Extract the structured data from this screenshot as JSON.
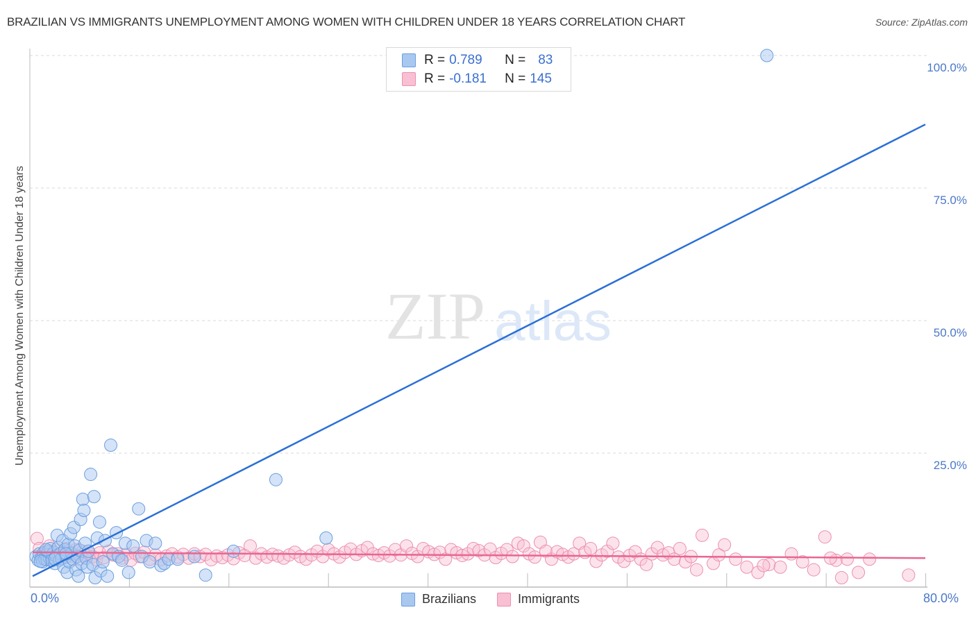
{
  "header": {
    "title": "BRAZILIAN VS IMMIGRANTS UNEMPLOYMENT AMONG WOMEN WITH CHILDREN UNDER 18 YEARS CORRELATION CHART",
    "source": "Source: ZipAtlas.com"
  },
  "watermark": {
    "zip": "ZIP",
    "atlas": "atlas"
  },
  "legend": {
    "rows": [
      {
        "r_label": "R =",
        "r_value": "0.789",
        "n_label": "N =",
        "n_value": "83",
        "color": "#a9c8f0",
        "border": "#6a9ee0"
      },
      {
        "r_label": "R =",
        "r_value": "-0.181",
        "n_label": "N =",
        "n_value": "145",
        "color": "#f8c0d2",
        "border": "#ec8fb0"
      }
    ]
  },
  "axes": {
    "ylabel": "Unemployment Among Women with Children Under 18 years",
    "x_min_label": "0.0%",
    "x_max_label": "80.0%",
    "y_ticks": [
      "100.0%",
      "75.0%",
      "50.0%",
      "25.0%"
    ]
  },
  "bottom_legend": [
    {
      "label": "Brazilians",
      "color": "#a9c8f0",
      "border": "#6a9ee0"
    },
    {
      "label": "Immigrants",
      "color": "#f8c0d2",
      "border": "#ec8fb0"
    }
  ],
  "chart_data": {
    "type": "scatter",
    "title": "BRAZILIAN VS IMMIGRANTS UNEMPLOYMENT AMONG WOMEN WITH CHILDREN UNDER 18 YEARS CORRELATION CHART",
    "xlabel": "",
    "ylabel": "Unemployment Among Women with Children Under 18 years",
    "xlim": [
      0,
      80
    ],
    "ylim": [
      0,
      100
    ],
    "x_ticks": [
      "0.0%",
      "80.0%"
    ],
    "y_ticks": [
      25,
      50,
      75,
      100
    ],
    "grid": "horizontal dashed",
    "legend_position": "top-center and bottom",
    "series": [
      {
        "name": "Brazilians",
        "color": "#6a9ee0",
        "R": 0.789,
        "N": 83,
        "trendline": {
          "x": [
            0,
            80
          ],
          "y": [
            1.8,
            87
          ]
        },
        "points": [
          [
            0.3,
            5.5
          ],
          [
            0.5,
            4.8
          ],
          [
            0.6,
            6.0
          ],
          [
            0.8,
            5.2
          ],
          [
            0.9,
            4.5
          ],
          [
            1.0,
            6.2
          ],
          [
            1.1,
            5.0
          ],
          [
            1.2,
            5.8
          ],
          [
            1.3,
            4.9
          ],
          [
            1.4,
            6.5
          ],
          [
            1.5,
            5.3
          ],
          [
            1.6,
            7.0
          ],
          [
            1.7,
            4.7
          ],
          [
            1.8,
            5.9
          ],
          [
            1.9,
            6.3
          ],
          [
            2.0,
            4.2
          ],
          [
            2.1,
            5.6
          ],
          [
            2.2,
            9.5
          ],
          [
            2.3,
            7.2
          ],
          [
            2.4,
            4.8
          ],
          [
            2.5,
            6.0
          ],
          [
            2.6,
            5.1
          ],
          [
            2.7,
            8.5
          ],
          [
            2.8,
            3.5
          ],
          [
            2.9,
            6.8
          ],
          [
            3.0,
            5.4
          ],
          [
            3.1,
            2.5
          ],
          [
            3.2,
            7.8
          ],
          [
            3.3,
            4.5
          ],
          [
            3.4,
            9.8
          ],
          [
            3.5,
            6.1
          ],
          [
            3.6,
            5.0
          ],
          [
            3.7,
            11.0
          ],
          [
            3.8,
            7.5
          ],
          [
            3.9,
            3.0
          ],
          [
            4.0,
            5.5
          ],
          [
            4.1,
            1.8
          ],
          [
            4.2,
            6.7
          ],
          [
            4.3,
            12.5
          ],
          [
            4.4,
            4.2
          ],
          [
            4.5,
            16.3
          ],
          [
            4.6,
            14.2
          ],
          [
            4.7,
            8.0
          ],
          [
            4.8,
            5.2
          ],
          [
            4.9,
            3.5
          ],
          [
            5.0,
            6.5
          ],
          [
            5.2,
            21.0
          ],
          [
            5.4,
            4.0
          ],
          [
            5.5,
            16.8
          ],
          [
            5.6,
            1.5
          ],
          [
            5.8,
            9.0
          ],
          [
            6.0,
            12.0
          ],
          [
            6.1,
            2.8
          ],
          [
            6.3,
            4.5
          ],
          [
            6.5,
            8.5
          ],
          [
            6.7,
            1.8
          ],
          [
            7.0,
            26.5
          ],
          [
            7.2,
            6.0
          ],
          [
            7.5,
            10.0
          ],
          [
            7.7,
            5.5
          ],
          [
            8.0,
            4.8
          ],
          [
            8.3,
            8.0
          ],
          [
            8.6,
            2.5
          ],
          [
            9.0,
            7.5
          ],
          [
            9.5,
            14.5
          ],
          [
            9.8,
            5.5
          ],
          [
            10.2,
            8.5
          ],
          [
            10.5,
            4.5
          ],
          [
            11.0,
            8.0
          ],
          [
            11.5,
            3.8
          ],
          [
            11.8,
            4.2
          ],
          [
            12.2,
            5.0
          ],
          [
            13.0,
            5.0
          ],
          [
            14.5,
            5.5
          ],
          [
            15.5,
            2.0
          ],
          [
            18.0,
            6.5
          ],
          [
            21.8,
            20.0
          ],
          [
            26.3,
            9.0
          ],
          [
            65.8,
            100.0
          ],
          [
            1.2,
            6.8
          ],
          [
            2.0,
            5.0
          ],
          [
            3.0,
            6.0
          ],
          [
            0.7,
            4.6
          ]
        ]
      },
      {
        "name": "Immigrants",
        "color": "#ec8fb0",
        "R": -0.181,
        "N": 145,
        "trendline": {
          "x": [
            0,
            80
          ],
          "y": [
            6.3,
            5.2
          ]
        },
        "points": [
          [
            0.4,
            8.9
          ],
          [
            0.6,
            7.0
          ],
          [
            0.9,
            5.5
          ],
          [
            1.2,
            6.5
          ],
          [
            1.5,
            7.5
          ],
          [
            1.8,
            5.0
          ],
          [
            2.1,
            6.8
          ],
          [
            2.4,
            6.0
          ],
          [
            2.7,
            5.2
          ],
          [
            3.0,
            7.0
          ],
          [
            3.3,
            6.2
          ],
          [
            3.6,
            5.5
          ],
          [
            3.9,
            6.8
          ],
          [
            4.2,
            5.0
          ],
          [
            4.5,
            6.5
          ],
          [
            4.8,
            5.8
          ],
          [
            5.1,
            6.0
          ],
          [
            5.4,
            5.5
          ],
          [
            5.7,
            4.9
          ],
          [
            6.0,
            6.2
          ],
          [
            6.4,
            5.3
          ],
          [
            6.8,
            6.5
          ],
          [
            7.2,
            5.8
          ],
          [
            7.6,
            6.0
          ],
          [
            8.0,
            5.2
          ],
          [
            8.4,
            5.9
          ],
          [
            8.8,
            4.8
          ],
          [
            9.2,
            6.1
          ],
          [
            9.6,
            5.5
          ],
          [
            10.0,
            6.3
          ],
          [
            10.5,
            5.0
          ],
          [
            11.0,
            5.8
          ],
          [
            11.5,
            4.9
          ],
          [
            12.0,
            5.6
          ],
          [
            12.5,
            6.0
          ],
          [
            13.0,
            5.4
          ],
          [
            13.5,
            5.9
          ],
          [
            14.0,
            5.2
          ],
          [
            14.5,
            6.0
          ],
          [
            15.0,
            5.5
          ],
          [
            15.5,
            5.9
          ],
          [
            16.0,
            4.9
          ],
          [
            16.5,
            5.6
          ],
          [
            17.0,
            5.3
          ],
          [
            17.5,
            5.8
          ],
          [
            18.0,
            5.1
          ],
          [
            18.5,
            6.2
          ],
          [
            19.0,
            5.7
          ],
          [
            19.5,
            7.5
          ],
          [
            20.0,
            5.2
          ],
          [
            20.5,
            6.0
          ],
          [
            21.0,
            5.4
          ],
          [
            21.5,
            5.9
          ],
          [
            22.0,
            5.6
          ],
          [
            22.5,
            5.2
          ],
          [
            23.0,
            5.8
          ],
          [
            23.5,
            6.3
          ],
          [
            24.0,
            5.5
          ],
          [
            24.5,
            5.0
          ],
          [
            25.0,
            5.8
          ],
          [
            25.5,
            6.5
          ],
          [
            26.0,
            5.5
          ],
          [
            26.5,
            6.8
          ],
          [
            27.0,
            6.0
          ],
          [
            27.5,
            5.4
          ],
          [
            28.0,
            6.3
          ],
          [
            28.5,
            6.9
          ],
          [
            29.0,
            5.9
          ],
          [
            29.5,
            6.6
          ],
          [
            30.0,
            7.2
          ],
          [
            30.5,
            6.0
          ],
          [
            31.0,
            5.7
          ],
          [
            31.5,
            6.2
          ],
          [
            32.0,
            5.6
          ],
          [
            32.5,
            6.8
          ],
          [
            33.0,
            5.8
          ],
          [
            33.5,
            7.5
          ],
          [
            34.0,
            6.1
          ],
          [
            34.5,
            5.5
          ],
          [
            35.0,
            7.0
          ],
          [
            35.5,
            6.4
          ],
          [
            36.0,
            5.9
          ],
          [
            36.5,
            6.3
          ],
          [
            37.0,
            5.0
          ],
          [
            37.5,
            6.8
          ],
          [
            38.0,
            6.2
          ],
          [
            38.5,
            5.7
          ],
          [
            39.0,
            6.0
          ],
          [
            39.5,
            7.0
          ],
          [
            40.0,
            6.6
          ],
          [
            40.5,
            5.8
          ],
          [
            41.0,
            6.9
          ],
          [
            41.5,
            5.3
          ],
          [
            42.0,
            6.1
          ],
          [
            42.5,
            6.8
          ],
          [
            43.0,
            5.5
          ],
          [
            43.5,
            8.0
          ],
          [
            44.0,
            7.5
          ],
          [
            44.5,
            6.0
          ],
          [
            45.0,
            5.4
          ],
          [
            45.5,
            8.2
          ],
          [
            46.0,
            6.5
          ],
          [
            46.5,
            5.0
          ],
          [
            47.0,
            6.4
          ],
          [
            47.5,
            5.9
          ],
          [
            48.0,
            5.4
          ],
          [
            48.5,
            6.0
          ],
          [
            49.0,
            8.0
          ],
          [
            49.5,
            6.3
          ],
          [
            50.0,
            7.0
          ],
          [
            50.5,
            4.6
          ],
          [
            51.0,
            5.8
          ],
          [
            51.5,
            6.5
          ],
          [
            52.0,
            8.0
          ],
          [
            52.5,
            5.4
          ],
          [
            53.0,
            4.6
          ],
          [
            53.5,
            5.7
          ],
          [
            54.0,
            6.4
          ],
          [
            54.5,
            5.0
          ],
          [
            55.0,
            4.0
          ],
          [
            55.5,
            6.0
          ],
          [
            56.0,
            7.2
          ],
          [
            56.5,
            5.8
          ],
          [
            57.0,
            6.2
          ],
          [
            57.5,
            5.0
          ],
          [
            58.0,
            7.0
          ],
          [
            58.5,
            4.5
          ],
          [
            59.0,
            5.5
          ],
          [
            59.5,
            3.0
          ],
          [
            60.0,
            9.5
          ],
          [
            61.0,
            4.2
          ],
          [
            62.0,
            7.7
          ],
          [
            63.0,
            5.0
          ],
          [
            64.0,
            3.5
          ],
          [
            65.0,
            2.5
          ],
          [
            66.0,
            4.0
          ],
          [
            67.0,
            3.5
          ],
          [
            68.0,
            6.0
          ],
          [
            69.0,
            4.5
          ],
          [
            70.0,
            3.0
          ],
          [
            71.0,
            9.2
          ],
          [
            72.0,
            4.8
          ],
          [
            72.5,
            1.5
          ],
          [
            73.0,
            5.0
          ],
          [
            74.0,
            2.5
          ],
          [
            75.0,
            5.0
          ],
          [
            78.5,
            2.0
          ],
          [
            71.5,
            5.2
          ],
          [
            65.5,
            3.8
          ],
          [
            61.5,
            5.8
          ]
        ]
      }
    ]
  }
}
